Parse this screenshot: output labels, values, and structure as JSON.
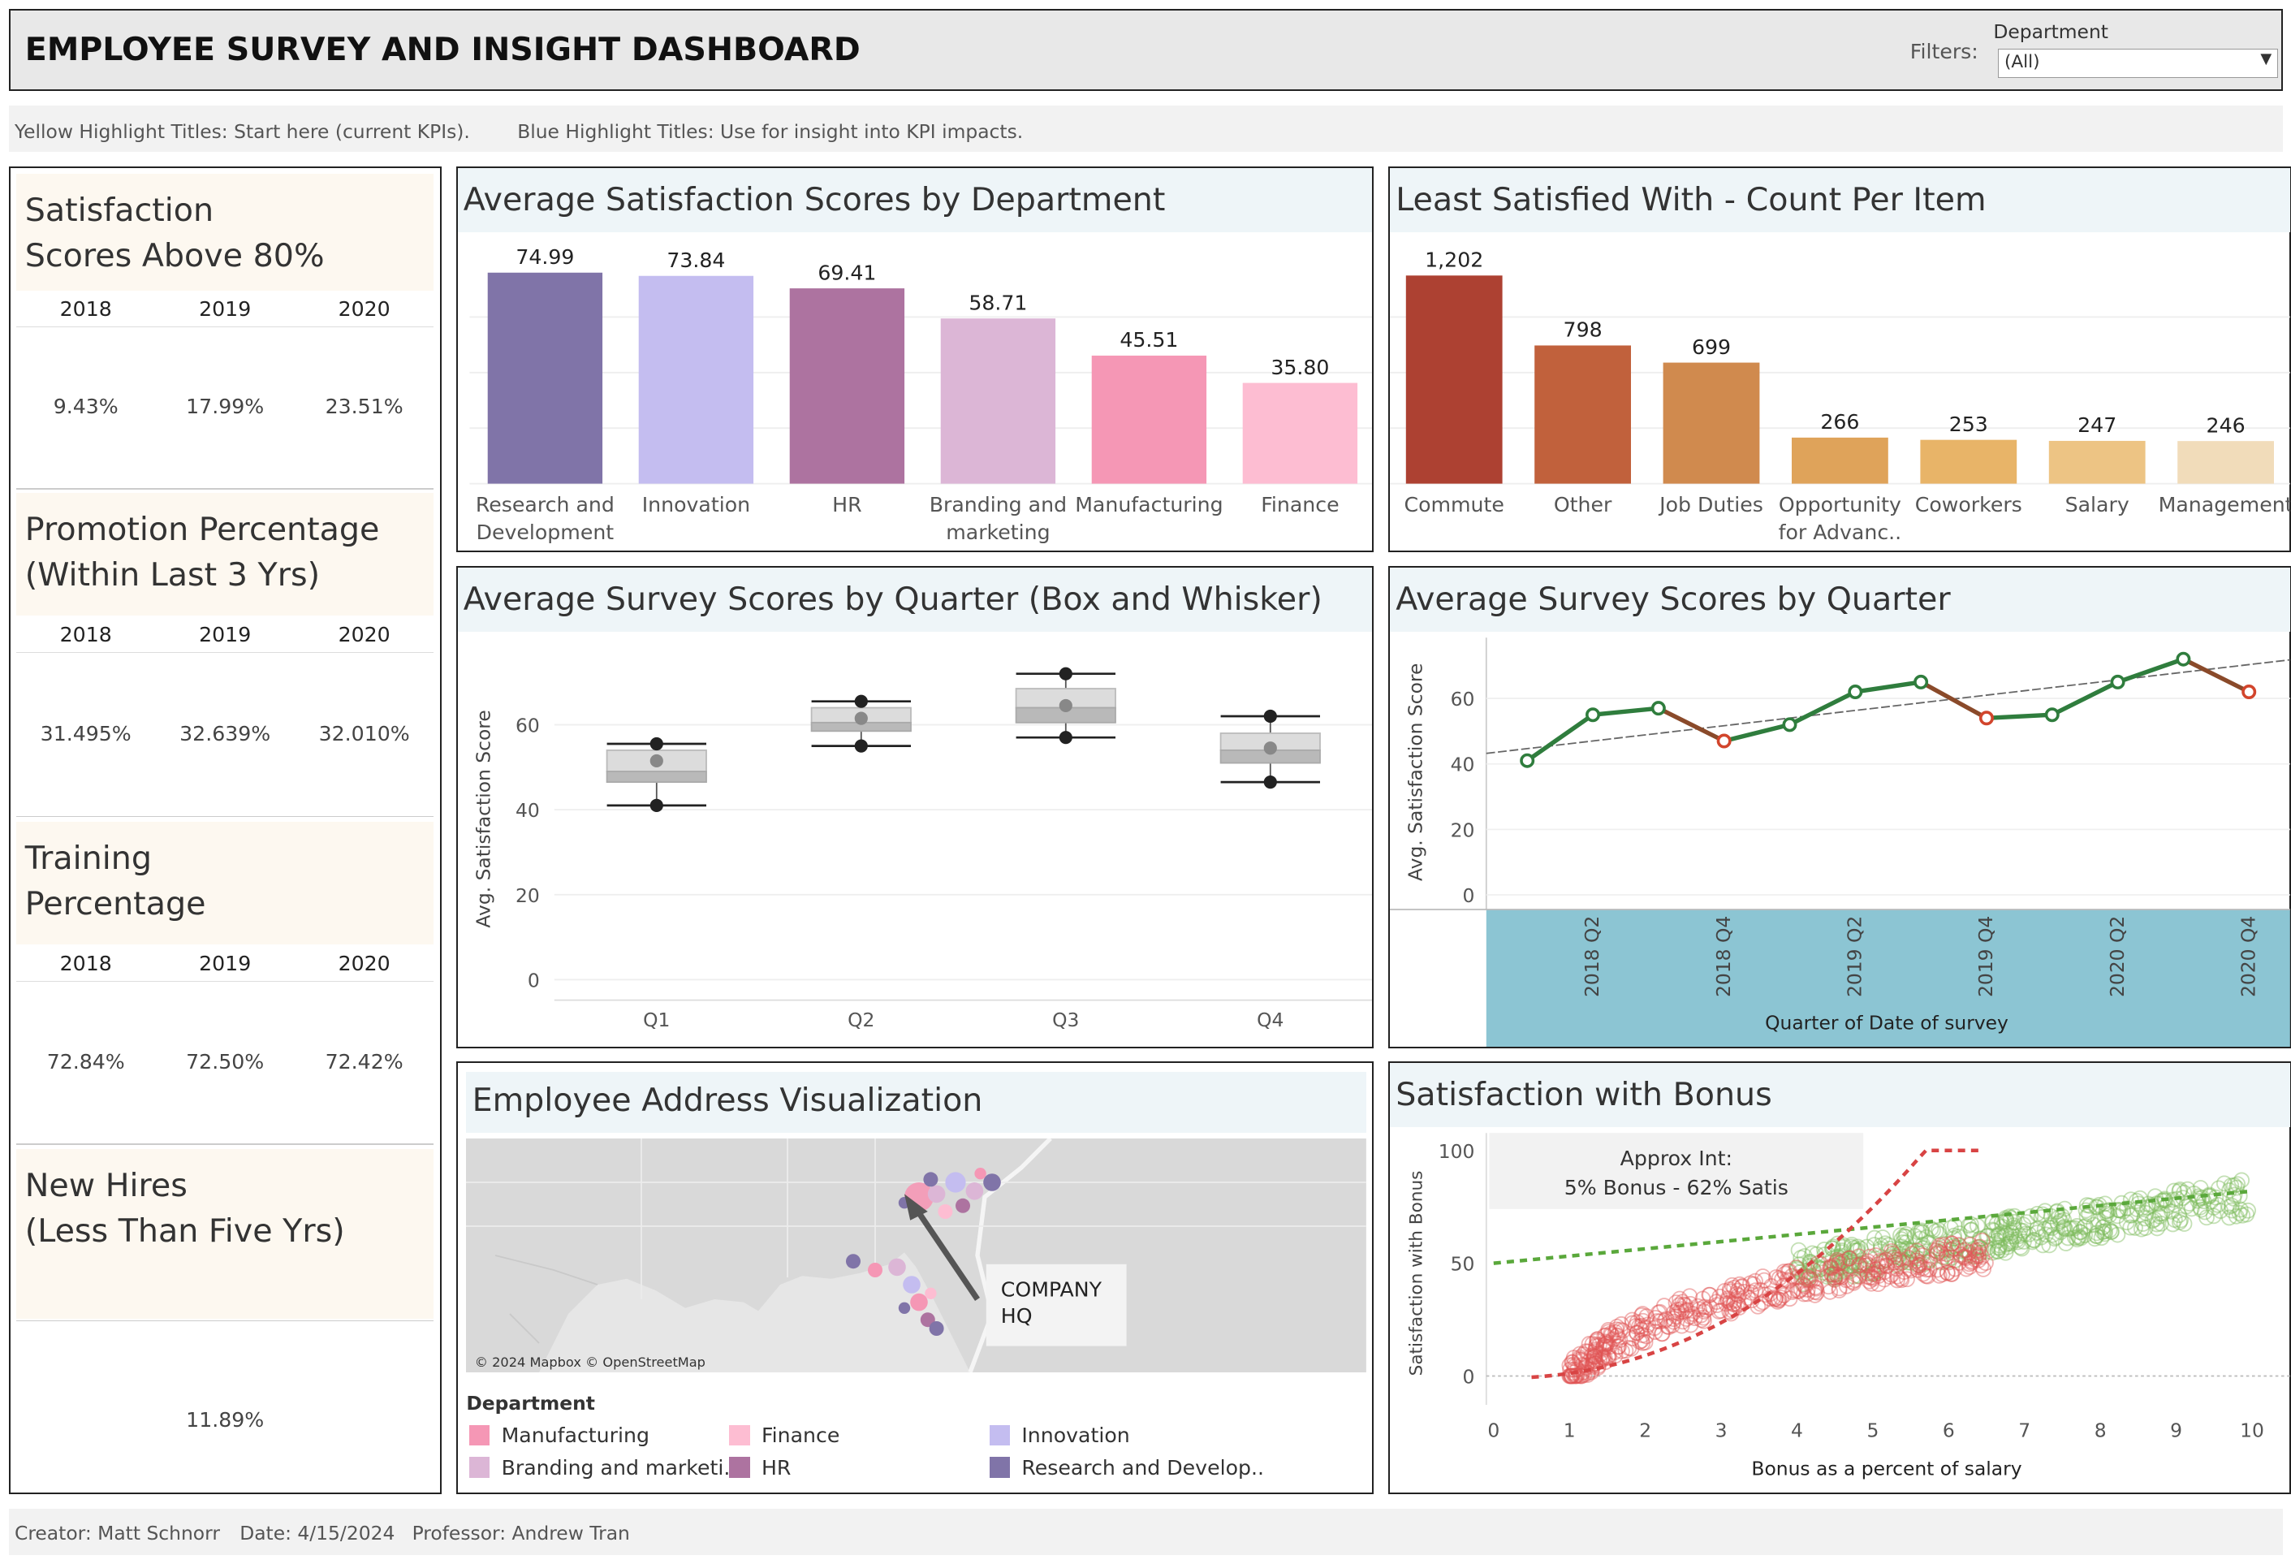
{
  "header": {
    "title": "EMPLOYEE SURVEY AND INSIGHT DASHBOARD",
    "filters_label": "Filters:",
    "filter_name": "Department",
    "filter_value": "(All)"
  },
  "hints": {
    "yellow": "Yellow Highlight Titles:  Start here (current KPIs).",
    "blue": "Blue Highlight Titles:  Use for insight into KPI impacts."
  },
  "kpis": [
    {
      "title_l1": "Satisfaction",
      "title_l2": "Scores Above 80%",
      "years": [
        "2018",
        "2019",
        "2020"
      ],
      "values": [
        "9.43%",
        "17.99%",
        "23.51%"
      ]
    },
    {
      "title_l1": "Promotion Percentage",
      "title_l2": "(Within Last 3 Yrs)",
      "years": [
        "2018",
        "2019",
        "2020"
      ],
      "values": [
        "31.495%",
        "32.639%",
        "32.010%"
      ]
    },
    {
      "title_l1": "Training",
      "title_l2": "Percentage",
      "years": [
        "2018",
        "2019",
        "2020"
      ],
      "values": [
        "72.84%",
        "72.50%",
        "72.42%"
      ]
    },
    {
      "title_l1": "New Hires",
      "title_l2": "(Less Than Five Yrs)",
      "value": "11.89%"
    }
  ],
  "chart_data": [
    {
      "type": "bar",
      "title": "Average Satisfaction Scores by Department",
      "categories": [
        "Research and Development",
        "Innovation",
        "HR",
        "Branding and marketing",
        "Manufacturing",
        "Finance"
      ],
      "values": [
        74.99,
        73.84,
        69.41,
        58.71,
        45.51,
        35.8
      ],
      "labels": [
        "74.99",
        "73.84",
        "69.41",
        "58.71",
        "45.51",
        "35.80"
      ],
      "colors": [
        "#8074a8",
        "#c4bdf0",
        "#ad73a0",
        "#dcb6d6",
        "#f597b5",
        "#fdbdd2"
      ],
      "ylim": [
        0,
        80
      ]
    },
    {
      "type": "bar",
      "title": "Least Satisfied With - Count Per Item",
      "categories": [
        "Commute",
        "Other",
        "Job Duties",
        "Opportunity for Advanc..",
        "Coworkers",
        "Salary",
        "Management"
      ],
      "values": [
        1202,
        798,
        699,
        266,
        253,
        247,
        246
      ],
      "labels": [
        "1,202",
        "798",
        "699",
        "266",
        "253",
        "247",
        "246"
      ],
      "colors": [
        "#ad4132",
        "#c1613c",
        "#d08a4e",
        "#dfa35a",
        "#e8b468",
        "#edc484",
        "#f1dcba"
      ],
      "ylim": [
        0,
        1300
      ]
    },
    {
      "type": "box",
      "title": "Average Survey Scores by Quarter (Box and Whisker)",
      "ylabel": "Avg. Satisfaction Score",
      "yticks": [
        "0",
        "20",
        "40",
        "60"
      ],
      "ylim": [
        0,
        75
      ],
      "categories": [
        "Q1",
        "Q2",
        "Q3",
        "Q4"
      ],
      "boxes": [
        {
          "min": 41,
          "q1": 46.5,
          "median": 49,
          "q3": 54,
          "max": 55.5,
          "points": [
            41,
            51.5,
            55.5
          ]
        },
        {
          "min": 55,
          "q1": 58.5,
          "median": 60.5,
          "q3": 64,
          "max": 65.5,
          "points": [
            55,
            61.5,
            65.5
          ]
        },
        {
          "min": 57,
          "q1": 60.5,
          "median": 64,
          "q3": 68.5,
          "max": 72,
          "points": [
            57,
            64.5,
            72
          ]
        },
        {
          "min": 46.5,
          "q1": 51,
          "median": 54,
          "q3": 58,
          "max": 62,
          "points": [
            46.5,
            54.5,
            62
          ]
        }
      ]
    },
    {
      "type": "line",
      "title": "Average Survey Scores by Quarter",
      "ylabel": "Avg. Satisfaction Score",
      "xlabel": "Quarter of Date of survey",
      "yticks": [
        "0",
        "20",
        "40",
        "60"
      ],
      "ylim": [
        0,
        75
      ],
      "x": [
        "2018 Q1",
        "2018 Q2",
        "2018 Q3",
        "2018 Q4",
        "2019 Q1",
        "2019 Q2",
        "2019 Q3",
        "2019 Q4",
        "2020 Q1",
        "2020 Q2",
        "2020 Q3",
        "2020 Q4"
      ],
      "xtick_labels": [
        "2018 Q2",
        "2018 Q4",
        "2019 Q2",
        "2019 Q4",
        "2020 Q2",
        "2020 Q4"
      ],
      "values": [
        41,
        55,
        57,
        47,
        52,
        62,
        65,
        54,
        55,
        65,
        72,
        62
      ],
      "trend": [
        45,
        70
      ]
    },
    {
      "type": "scatter",
      "title": "Satisfaction with Bonus",
      "xlabel": "Bonus as a percent of salary",
      "ylabel": "Satisfaction with Bonus",
      "xticks": [
        "0",
        "1",
        "2",
        "3",
        "4",
        "5",
        "6",
        "7",
        "8",
        "9",
        "10"
      ],
      "yticks": [
        "0",
        "50",
        "100"
      ],
      "xlim": [
        0,
        10
      ],
      "ylim": [
        -5,
        100
      ],
      "annotation_l1": "Approx Int:",
      "annotation_l2": "5% Bonus - 62% Satis",
      "series": [
        {
          "color": "#e05555",
          "x_range": [
            1,
            6.5
          ],
          "y_range": [
            0,
            58
          ]
        },
        {
          "color": "#7cba5c",
          "x_range": [
            4,
            10
          ],
          "y_range": [
            48,
            88
          ]
        }
      ]
    }
  ],
  "map": {
    "title": "Employee Address Visualization",
    "callout_l1": "COMPANY",
    "callout_l2": "HQ",
    "attribution": "© 2024 Mapbox © OpenStreetMap",
    "legend_title": "Department",
    "legend": [
      {
        "label": "Manufacturing",
        "color": "#f597b5"
      },
      {
        "label": "Finance",
        "color": "#fdbdd2"
      },
      {
        "label": "Innovation",
        "color": "#c4bdf0"
      },
      {
        "label": "Branding and marketi..",
        "color": "#dcb6d6"
      },
      {
        "label": "HR",
        "color": "#ad73a0"
      },
      {
        "label": "Research and Develop..",
        "color": "#8074a8"
      }
    ]
  },
  "footer": {
    "creator": "Creator:  Matt Schnorr",
    "date": "Date: 4/15/2024",
    "professor": "Professor:  Andrew Tran"
  }
}
